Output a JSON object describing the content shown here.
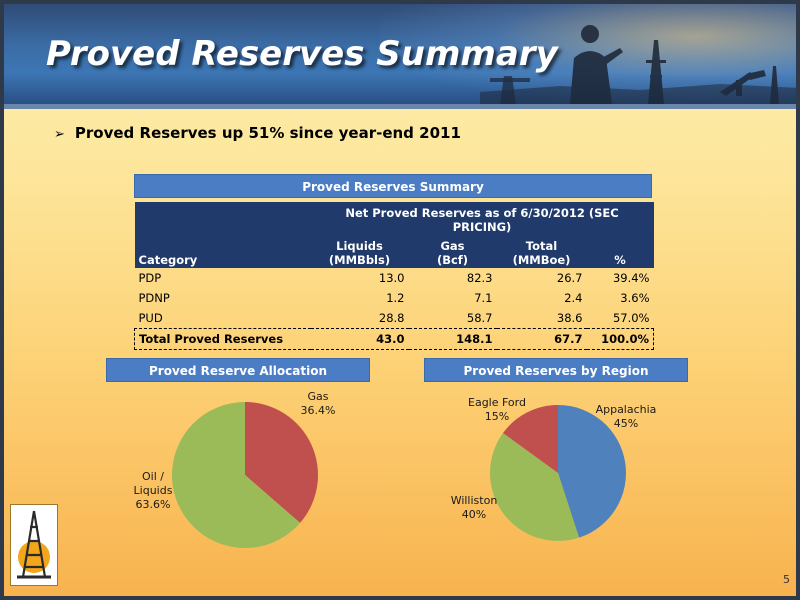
{
  "slide": {
    "title": "Proved Reserves Summary",
    "page_number": "5"
  },
  "bullet": {
    "marker": "➢",
    "text": "Proved Reserves up 51% since year-end 2011"
  },
  "table": {
    "title": "Proved Reserves Summary",
    "group_header": "Net Proved Reserves as of 6/30/2012 (SEC PRICING)",
    "columns": {
      "category": "Category",
      "liquids": [
        "Liquids",
        "(MMBbls)"
      ],
      "gas": [
        "Gas",
        "(Bcf)"
      ],
      "total": [
        "Total",
        "(MMBoe)"
      ],
      "pct": "%"
    },
    "rows": [
      {
        "category": "PDP",
        "liquids": "13.0",
        "gas": "82.3",
        "total": "26.7",
        "pct": "39.4%"
      },
      {
        "category": "PDNP",
        "liquids": "1.2",
        "gas": "7.1",
        "total": "2.4",
        "pct": "3.6%"
      },
      {
        "category": "PUD",
        "liquids": "28.8",
        "gas": "58.7",
        "total": "38.6",
        "pct": "57.0%"
      }
    ],
    "total_row": {
      "category": "Total Proved Reserves",
      "liquids": "43.0",
      "gas": "148.1",
      "total": "67.7",
      "pct": "100.0%"
    }
  },
  "chart_data": [
    {
      "type": "pie",
      "title": "Proved Reserve Allocation",
      "slices": [
        {
          "label_lines": [
            "Gas"
          ],
          "value": 36.4,
          "value_label": "36.4%",
          "color": "#c0504d"
        },
        {
          "label_lines": [
            "Oil /",
            "Liquids"
          ],
          "value": 63.6,
          "value_label": "63.6%",
          "color": "#9bbb59"
        }
      ]
    },
    {
      "type": "pie",
      "title": "Proved Reserves by Region",
      "slices": [
        {
          "label_lines": [
            "Appalachia"
          ],
          "value": 45,
          "value_label": "45%",
          "color": "#4f81bd"
        },
        {
          "label_lines": [
            "Williston"
          ],
          "value": 40,
          "value_label": "40%",
          "color": "#9bbb59"
        },
        {
          "label_lines": [
            "Eagle Ford"
          ],
          "value": 15,
          "value_label": "15%",
          "color": "#c0504d"
        }
      ]
    }
  ]
}
